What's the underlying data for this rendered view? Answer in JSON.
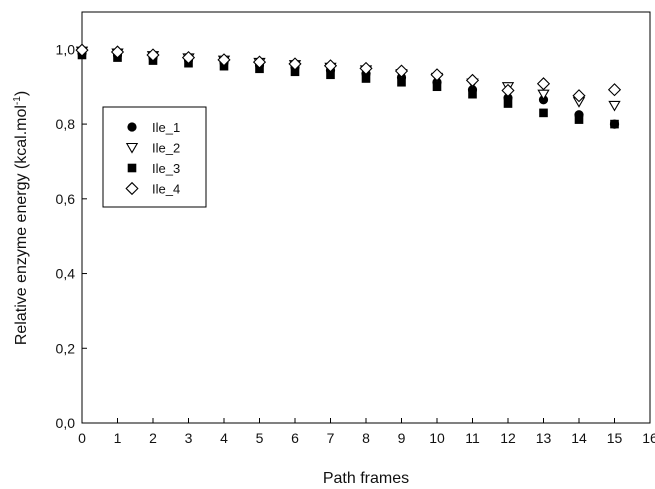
{
  "chart_data": {
    "type": "scatter",
    "title": "",
    "xlabel": "Path frames",
    "ylabel_main": "Relative enzyme energy (kcal.mol",
    "ylabel_sup": "-1",
    "ylabel_close": ")",
    "xlim": [
      0,
      16
    ],
    "ylim": [
      0.0,
      1.1
    ],
    "xticks": [
      0,
      1,
      2,
      3,
      4,
      5,
      6,
      7,
      8,
      9,
      10,
      11,
      12,
      13,
      14,
      15,
      16
    ],
    "xtick_labels": [
      "0",
      "1",
      "2",
      "3",
      "4",
      "5",
      "6",
      "7",
      "8",
      "9",
      "10",
      "11",
      "12",
      "13",
      "14",
      "15",
      "16"
    ],
    "yticks": [
      0.0,
      0.2,
      0.4,
      0.6,
      0.8,
      1.0
    ],
    "ytick_labels": [
      "0,0",
      "0,2",
      "0,4",
      "0,6",
      "0,8",
      "1,0"
    ],
    "grid": false,
    "legend_position": "left-upper",
    "x": [
      0,
      1,
      2,
      3,
      4,
      5,
      6,
      7,
      8,
      9,
      10,
      11,
      12,
      13,
      14,
      15
    ],
    "series": [
      {
        "name": "Ile_1",
        "marker": "filled-circle",
        "values": [
          0.99,
          0.985,
          0.978,
          0.972,
          0.965,
          0.958,
          0.952,
          0.944,
          0.935,
          0.925,
          0.912,
          0.892,
          0.87,
          0.865,
          0.825,
          0.8
        ]
      },
      {
        "name": "Ile_2",
        "marker": "open-triangle-down",
        "values": [
          0.995,
          0.99,
          0.983,
          0.977,
          0.971,
          0.965,
          0.959,
          0.952,
          0.945,
          0.935,
          0.925,
          0.91,
          0.9,
          0.88,
          0.86,
          0.85
        ]
      },
      {
        "name": "Ile_3",
        "marker": "filled-square",
        "values": [
          0.985,
          0.978,
          0.97,
          0.963,
          0.955,
          0.948,
          0.94,
          0.932,
          0.922,
          0.912,
          0.9,
          0.88,
          0.855,
          0.83,
          0.812,
          0.8
        ]
      },
      {
        "name": "Ile_4",
        "marker": "open-diamond",
        "values": [
          0.998,
          0.993,
          0.985,
          0.978,
          0.972,
          0.966,
          0.961,
          0.956,
          0.949,
          0.942,
          0.932,
          0.917,
          0.89,
          0.908,
          0.876,
          0.892
        ]
      }
    ]
  }
}
